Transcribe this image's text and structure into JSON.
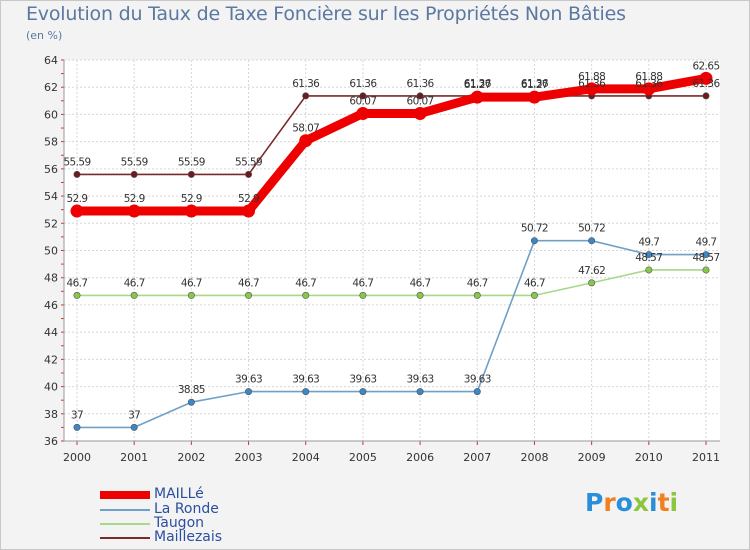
{
  "title": "Evolution du Taux de Taxe Foncière sur les Propriétés Non Bâties",
  "subtitle": "(en %)",
  "logo": {
    "text": "Proxiti",
    "colors": [
      "#2a8fd8",
      "#f08020",
      "#2a8fd8",
      "#8cc63f",
      "#2a8fd8",
      "#f08020",
      "#8cc63f"
    ]
  },
  "chart_data": {
    "type": "line",
    "categories": [
      "2000",
      "2001",
      "2002",
      "2003",
      "2004",
      "2005",
      "2006",
      "2007",
      "2008",
      "2009",
      "2010",
      "2011"
    ],
    "ylim": [
      36,
      64
    ],
    "yticks": [
      "36",
      "38",
      "40",
      "42",
      "44",
      "46",
      "48",
      "50",
      "52",
      "54",
      "56",
      "58",
      "60",
      "62",
      "64"
    ],
    "grid": true,
    "series": [
      {
        "name": "Maillezais",
        "color": "#7a2a2a",
        "marker": "#6b1c1c",
        "emphasis": false,
        "values": [
          55.59,
          55.59,
          55.59,
          55.59,
          61.36,
          61.36,
          61.36,
          61.36,
          61.36,
          61.36,
          61.36,
          61.36
        ],
        "labels": [
          "55.59",
          "55.59",
          "55.59",
          "55.59",
          "61.36",
          "61.36",
          "61.36",
          "61.36",
          "61.36",
          "61.36",
          "61.36",
          "61.36"
        ]
      },
      {
        "name": "Taugon",
        "color": "#a8d888",
        "marker": "#88c848",
        "emphasis": false,
        "values": [
          46.7,
          46.7,
          46.7,
          46.7,
          46.7,
          46.7,
          46.7,
          46.7,
          46.7,
          47.62,
          48.57,
          48.57
        ],
        "labels": [
          "46.7",
          "46.7",
          "46.7",
          "46.7",
          "46.7",
          "46.7",
          "46.7",
          "46.7",
          "46.7",
          "47.62",
          "48.57",
          "48.57"
        ]
      },
      {
        "name": "La Ronde",
        "color": "#6fa0c8",
        "marker": "#3a88c8",
        "emphasis": false,
        "values": [
          37,
          37,
          38.85,
          39.63,
          39.63,
          39.63,
          39.63,
          39.63,
          50.72,
          50.72,
          49.7,
          49.7
        ],
        "labels": [
          "37",
          "37",
          "38.85",
          "39.63",
          "39.63",
          "39.63",
          "39.63",
          "39.63",
          "50.72",
          "50.72",
          "49.7",
          "49.7"
        ]
      },
      {
        "name": "MAILLé",
        "color": "#ee0000",
        "marker": "#ee0000",
        "emphasis": true,
        "values": [
          52.9,
          52.9,
          52.9,
          52.9,
          58.07,
          60.07,
          60.07,
          61.27,
          61.27,
          61.88,
          61.88,
          62.65
        ],
        "labels": [
          "52.9",
          "52.9",
          "52.9",
          "52.9",
          "58.07",
          "60.07",
          "60.07",
          "61.27",
          "61.27",
          "61.88",
          "61.88",
          "62.65"
        ]
      }
    ],
    "legend": [
      "MAILLé",
      "La Ronde",
      "Taugon",
      "Maillezais"
    ]
  }
}
